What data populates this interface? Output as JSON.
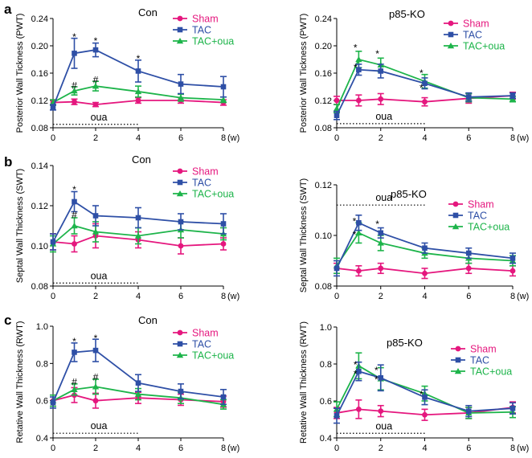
{
  "colors": {
    "Sham": "#E5177E",
    "TAC": "#2E4FA6",
    "TAC+oua": "#1DB44A"
  },
  "chart_data": [
    {
      "id": "a-left",
      "panel_label": "a",
      "type": "line",
      "title": "Con",
      "ylabel": "Posterior Wall Tickness (PWT)",
      "xlabel": "(w)",
      "ylim": [
        0.08,
        0.24
      ],
      "yticks": [
        "0.08",
        "0.12",
        "0.16",
        "0.20",
        "0.24"
      ],
      "xlim": [
        0,
        8
      ],
      "xticks": [
        "0",
        "2",
        "4",
        "6",
        "8"
      ],
      "legend": [
        "Sham",
        "TAC",
        "TAC+oua"
      ],
      "legend_position": "top-right",
      "annotation": {
        "text": "oua",
        "x_start": 0,
        "x_end": 4,
        "y": 0.085
      },
      "series": [
        {
          "name": "Sham",
          "x": [
            0,
            1,
            2,
            4,
            6,
            8
          ],
          "y": [
            0.117,
            0.118,
            0.114,
            0.12,
            0.12,
            0.117
          ],
          "err": [
            0.004,
            0.004,
            0.003,
            0.004,
            0.004,
            0.004
          ]
        },
        {
          "name": "TAC",
          "x": [
            0,
            1,
            2,
            4,
            6,
            8
          ],
          "y": [
            0.11,
            0.189,
            0.194,
            0.163,
            0.144,
            0.14
          ],
          "err": [
            0.004,
            0.022,
            0.01,
            0.016,
            0.014,
            0.015
          ]
        },
        {
          "name": "TAC+oua",
          "x": [
            0,
            1,
            2,
            4,
            6,
            8
          ],
          "y": [
            0.117,
            0.134,
            0.141,
            0.133,
            0.124,
            0.121
          ],
          "err": [
            0.004,
            0.006,
            0.007,
            0.008,
            0.005,
            0.004
          ]
        }
      ],
      "markers": [
        {
          "text": "*",
          "x": 1,
          "y": 0.213
        },
        {
          "text": "*",
          "x": 2,
          "y": 0.207
        },
        {
          "text": "*",
          "x": 4,
          "y": 0.181
        },
        {
          "text": "#",
          "x": 1,
          "y": 0.142
        },
        {
          "text": "#",
          "x": 2,
          "y": 0.15
        }
      ]
    },
    {
      "id": "a-right",
      "type": "line",
      "title": "p85-KO",
      "ylabel": "Posterior Wall Tickness (PWT)",
      "xlabel": "(w)",
      "ylim": [
        0.08,
        0.24
      ],
      "yticks": [
        "0.08",
        "0.12",
        "0.16",
        "0.20",
        "0.24"
      ],
      "xlim": [
        0,
        8
      ],
      "xticks": [
        "0",
        "2",
        "4",
        "6",
        "8"
      ],
      "legend": [
        "Sham",
        "TAC",
        "TAC+oua"
      ],
      "legend_position": "top-right",
      "annotation": {
        "text": "oua",
        "x_start": 0,
        "x_end": 4,
        "y": 0.086
      },
      "series": [
        {
          "name": "Sham",
          "x": [
            0,
            1,
            2,
            4,
            6,
            8
          ],
          "y": [
            0.12,
            0.12,
            0.122,
            0.118,
            0.123,
            0.127
          ],
          "err": [
            0.006,
            0.008,
            0.008,
            0.006,
            0.007,
            0.005
          ]
        },
        {
          "name": "TAC",
          "x": [
            0,
            1,
            2,
            4,
            6,
            8
          ],
          "y": [
            0.098,
            0.165,
            0.163,
            0.145,
            0.125,
            0.127
          ],
          "err": [
            0.006,
            0.008,
            0.01,
            0.008,
            0.006,
            0.004
          ]
        },
        {
          "name": "TAC+oua",
          "x": [
            0,
            1,
            2,
            4,
            6,
            8
          ],
          "y": [
            0.108,
            0.18,
            0.172,
            0.148,
            0.124,
            0.122
          ],
          "err": [
            0.006,
            0.012,
            0.01,
            0.01,
            0.006,
            0.004
          ]
        }
      ],
      "markers": [
        {
          "text": "*",
          "x": 0.85,
          "y": 0.197
        },
        {
          "text": "*",
          "x": 0.85,
          "y": 0.168
        },
        {
          "text": "*",
          "x": 1.85,
          "y": 0.188
        },
        {
          "text": "*",
          "x": 3.85,
          "y": 0.16
        },
        {
          "text": "*",
          "x": 3.85,
          "y": 0.138
        }
      ]
    },
    {
      "id": "b-left",
      "panel_label": "b",
      "type": "line",
      "title": "Con",
      "ylabel": "Septal Wall Thickness (SWT)",
      "xlabel": "(w)",
      "ylim": [
        0.08,
        0.14
      ],
      "yticks": [
        "0.08",
        "0.10",
        "0.12",
        "0.14"
      ],
      "xlim": [
        0,
        8
      ],
      "xticks": [
        "0",
        "2",
        "4",
        "6",
        "8"
      ],
      "legend": [
        "Sham",
        "TAC",
        "TAC+oua"
      ],
      "legend_position": "top-right",
      "annotation": {
        "text": "oua",
        "x_start": 0,
        "x_end": 4,
        "y": 0.0815
      },
      "series": [
        {
          "name": "Sham",
          "x": [
            0,
            1,
            2,
            4,
            6,
            8
          ],
          "y": [
            0.102,
            0.101,
            0.105,
            0.103,
            0.1,
            0.101
          ],
          "err": [
            0.004,
            0.004,
            0.006,
            0.004,
            0.004,
            0.003
          ]
        },
        {
          "name": "TAC",
          "x": [
            0,
            1,
            2,
            4,
            6,
            8
          ],
          "y": [
            0.102,
            0.122,
            0.115,
            0.114,
            0.112,
            0.111
          ],
          "err": [
            0.004,
            0.005,
            0.005,
            0.005,
            0.004,
            0.005
          ]
        },
        {
          "name": "TAC+oua",
          "x": [
            0,
            1,
            2,
            4,
            6,
            8
          ],
          "y": [
            0.101,
            0.11,
            0.107,
            0.105,
            0.108,
            0.106
          ],
          "err": [
            0.004,
            0.004,
            0.005,
            0.004,
            0.004,
            0.003
          ]
        }
      ],
      "markers": [
        {
          "text": "*",
          "x": 1,
          "y": 0.128
        },
        {
          "text": "#",
          "x": 1,
          "y": 0.1155
        }
      ]
    },
    {
      "id": "b-right",
      "type": "line",
      "title": "p85-KO",
      "ylabel": "Septal Wall Thickness (SWT)",
      "xlabel": "(w)",
      "ylim": [
        0.08,
        0.12
      ],
      "yticks": [
        "0.08",
        "0.10",
        "0.12"
      ],
      "xlim": [
        0,
        8
      ],
      "xticks": [
        "0",
        "2",
        "4",
        "6",
        "8"
      ],
      "legend": [
        "Sham",
        "TAC",
        "TAC+oua"
      ],
      "legend_position": "top-right",
      "annotation": {
        "text": "oua",
        "x_start": 0,
        "x_end": 4,
        "y": 0.112
      },
      "series": [
        {
          "name": "Sham",
          "x": [
            0,
            1,
            2,
            4,
            6,
            8
          ],
          "y": [
            0.087,
            0.086,
            0.087,
            0.085,
            0.087,
            0.086
          ],
          "err": [
            0.002,
            0.002,
            0.002,
            0.002,
            0.002,
            0.002
          ]
        },
        {
          "name": "TAC",
          "x": [
            0,
            1,
            2,
            4,
            6,
            8
          ],
          "y": [
            0.087,
            0.105,
            0.101,
            0.095,
            0.093,
            0.091
          ],
          "err": [
            0.003,
            0.003,
            0.002,
            0.002,
            0.002,
            0.002
          ]
        },
        {
          "name": "TAC+oua",
          "x": [
            0,
            1,
            2,
            4,
            6,
            8
          ],
          "y": [
            0.088,
            0.101,
            0.097,
            0.093,
            0.091,
            0.09
          ],
          "err": [
            0.003,
            0.004,
            0.003,
            0.002,
            0.002,
            0.002
          ]
        }
      ],
      "markers": [
        {
          "text": "*",
          "x": 0.8,
          "y": 0.1055
        },
        {
          "text": "*",
          "x": 0.8,
          "y": 0.1003
        },
        {
          "text": "*",
          "x": 1.85,
          "y": 0.1045
        }
      ]
    },
    {
      "id": "c-left",
      "panel_label": "c",
      "type": "line",
      "title": "Con",
      "ylabel": "Retative Wall Thickness (RWT)",
      "xlabel": "(w)",
      "ylim": [
        0.4,
        1.0
      ],
      "yticks": [
        "0.4",
        "0.6",
        "0.8",
        "1.0"
      ],
      "xlim": [
        0,
        8
      ],
      "xticks": [
        "0",
        "2",
        "4",
        "6",
        "8"
      ],
      "legend": [
        "Sham",
        "TAC",
        "TAC+oua"
      ],
      "legend_position": "top-right",
      "annotation": {
        "text": "oua",
        "x_start": 0,
        "x_end": 4,
        "y": 0.425
      },
      "series": [
        {
          "name": "Sham",
          "x": [
            0,
            1,
            2,
            4,
            6,
            8
          ],
          "y": [
            0.6,
            0.63,
            0.6,
            0.615,
            0.605,
            0.595
          ],
          "err": [
            0.03,
            0.04,
            0.04,
            0.03,
            0.03,
            0.03
          ]
        },
        {
          "name": "TAC",
          "x": [
            0,
            1,
            2,
            4,
            6,
            8
          ],
          "y": [
            0.59,
            0.86,
            0.87,
            0.695,
            0.65,
            0.62
          ],
          "err": [
            0.03,
            0.05,
            0.06,
            0.045,
            0.04,
            0.04
          ]
        },
        {
          "name": "TAC+oua",
          "x": [
            0,
            1,
            2,
            4,
            6,
            8
          ],
          "y": [
            0.6,
            0.66,
            0.675,
            0.635,
            0.615,
            0.58
          ],
          "err": [
            0.03,
            0.03,
            0.04,
            0.03,
            0.03,
            0.025
          ]
        }
      ],
      "markers": [
        {
          "text": "*",
          "x": 1,
          "y": 0.918
        },
        {
          "text": "*",
          "x": 2,
          "y": 0.935
        },
        {
          "text": "#",
          "x": 1,
          "y": 0.7
        },
        {
          "text": "#",
          "x": 2,
          "y": 0.725
        }
      ]
    },
    {
      "id": "c-right",
      "type": "line",
      "title": "p85-KO",
      "ylabel": "Retative Wall Thickness (RWT)",
      "xlabel": "(w)",
      "ylim": [
        0.4,
        1.0
      ],
      "yticks": [
        "0.4",
        "0.6",
        "0.8",
        "1.0"
      ],
      "xlim": [
        0,
        8
      ],
      "xticks": [
        "0",
        "2",
        "4",
        "6",
        "8"
      ],
      "legend": [
        "Sham",
        "TAC",
        "TAC+oua"
      ],
      "legend_position": "top-right",
      "annotation": {
        "text": "oua",
        "x_start": 0,
        "x_end": 4,
        "y": 0.425
      },
      "series": [
        {
          "name": "Sham",
          "x": [
            0,
            1,
            2,
            4,
            6,
            8
          ],
          "y": [
            0.535,
            0.555,
            0.545,
            0.525,
            0.535,
            0.565
          ],
          "err": [
            0.03,
            0.05,
            0.03,
            0.03,
            0.03,
            0.03
          ]
        },
        {
          "name": "TAC",
          "x": [
            0,
            1,
            2,
            4,
            6,
            8
          ],
          "y": [
            0.52,
            0.76,
            0.725,
            0.62,
            0.545,
            0.56
          ],
          "err": [
            0.04,
            0.05,
            0.07,
            0.04,
            0.03,
            0.03
          ]
        },
        {
          "name": "TAC+oua",
          "x": [
            0,
            1,
            2,
            4,
            6,
            8
          ],
          "y": [
            0.555,
            0.79,
            0.72,
            0.64,
            0.535,
            0.54
          ],
          "err": [
            0.04,
            0.07,
            0.06,
            0.04,
            0.03,
            0.03
          ]
        }
      ],
      "markers": [
        {
          "text": "*",
          "x": 0.85,
          "y": 0.795
        },
        {
          "text": "*",
          "x": 0.85,
          "y": 0.745
        },
        {
          "text": "*",
          "x": 1.8,
          "y": 0.765
        },
        {
          "text": "*",
          "x": 1.8,
          "y": 0.715
        },
        {
          "text": "*",
          "x": 3.85,
          "y": 0.635
        }
      ]
    }
  ]
}
